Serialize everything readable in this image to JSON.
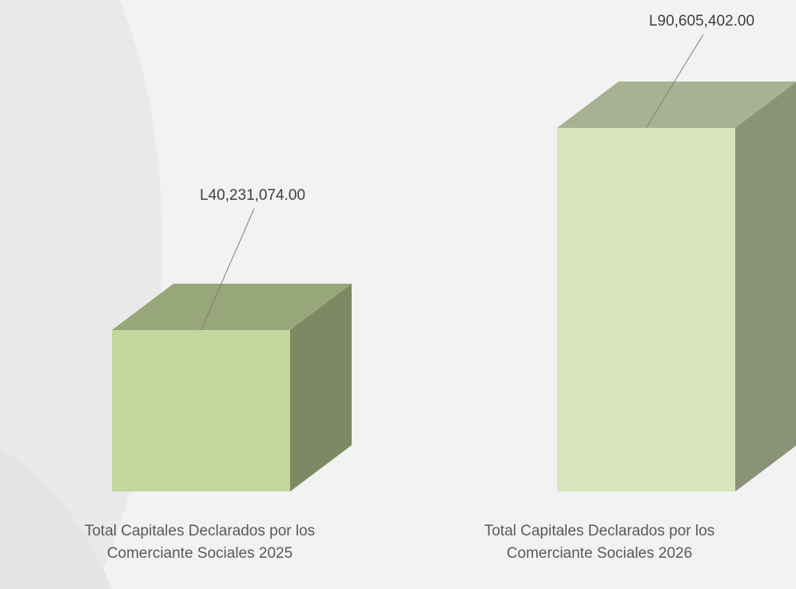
{
  "chart_data": {
    "type": "bar3d",
    "categories": [
      "Total Capitales Declarados por los Comerciante Sociales 2025",
      "Total Capitales Declarados por los Comerciante Sociales 2026"
    ],
    "values": [
      40231074,
      90605402
    ],
    "value_labels": [
      "L40,231,074.00",
      "L90,605,402.00"
    ],
    "colors": [
      "#c3d69b",
      "#d7e4bc"
    ]
  }
}
